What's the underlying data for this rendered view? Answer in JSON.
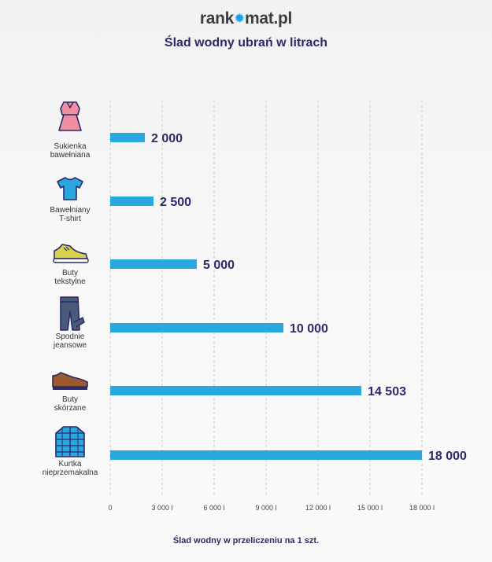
{
  "brand": {
    "name_part1": "rank",
    "name_part2": "mat.pl",
    "accent_color": "#1e9de0"
  },
  "chart_data": {
    "type": "bar",
    "orientation": "horizontal",
    "title": "Ślad wodny ubrań w litrach",
    "xlabel": "Ślad wodny w przeliczeniu na 1 szt.",
    "categories": [
      [
        "Sukienka",
        "bawełniana"
      ],
      [
        "Bawełniany",
        "T-shirt"
      ],
      [
        "Buty",
        "tekstylne"
      ],
      [
        "Spodnie",
        "jeansowe"
      ],
      [
        "Buty",
        "skórzane"
      ],
      [
        "Kurtka",
        "nieprzemakalna"
      ]
    ],
    "icons": [
      "dress-icon",
      "tshirt-icon",
      "sneaker-icon",
      "jeans-icon",
      "leather-shoe-icon",
      "jacket-icon"
    ],
    "values": [
      2000,
      2500,
      5000,
      10000,
      14503,
      18000
    ],
    "value_labels": [
      "2 000",
      "2 500",
      "5 000",
      "10 000",
      "14 503",
      "18 000"
    ],
    "xlim": [
      0,
      18000
    ],
    "ticks": [
      0,
      3000,
      6000,
      9000,
      12000,
      15000,
      18000
    ],
    "tick_labels": [
      "0",
      "3 000 l",
      "6 000 l",
      "9 000 l",
      "12 000 l",
      "15 000 l",
      "18 000 l"
    ],
    "bar_color": "#29a8e0",
    "grid": true,
    "legend": "none"
  }
}
